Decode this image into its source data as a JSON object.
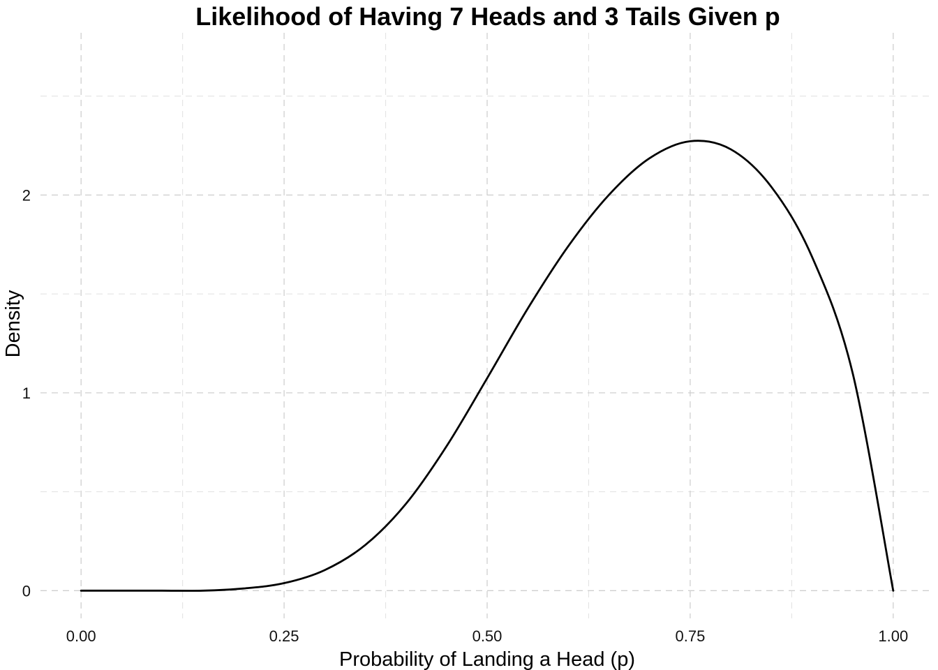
{
  "chart_data": {
    "type": "line",
    "title": "Likelihood of Having 7 Heads and 3 Tails Given p",
    "xlabel": "Probability of Landing a Head (p)",
    "ylabel": "Density",
    "xlim": [
      -0.05,
      1.05
    ],
    "ylim": [
      -0.14,
      2.82
    ],
    "x_ticks": [
      0.0,
      0.25,
      0.5,
      0.75,
      1.0
    ],
    "x_tick_labels": [
      "0.00",
      "0.25",
      "0.50",
      "0.75",
      "1.00"
    ],
    "y_ticks": [
      0,
      1,
      2
    ],
    "y_tick_labels": [
      "0",
      "1",
      "2"
    ],
    "x_minor_ticks": [
      0.125,
      0.375,
      0.625,
      0.875
    ],
    "y_minor_ticks": [
      0.5,
      1.5,
      2.5
    ],
    "grid": true,
    "legend": "none",
    "series": [
      {
        "color": "#000000",
        "x": [
          0.0,
          0.05,
          0.1,
          0.15,
          0.2,
          0.25,
          0.3,
          0.35,
          0.4,
          0.45,
          0.5,
          0.55,
          0.6,
          0.65,
          0.7,
          0.75,
          0.8,
          0.85,
          0.9,
          0.95,
          1.0
        ],
        "y": [
          0.0,
          0.0,
          0.0,
          0.0,
          0.011,
          0.038,
          0.104,
          0.231,
          0.439,
          0.73,
          1.074,
          1.426,
          1.742,
          2.001,
          2.186,
          2.272,
          2.231,
          2.041,
          1.688,
          1.101,
          0.0
        ]
      }
    ]
  }
}
